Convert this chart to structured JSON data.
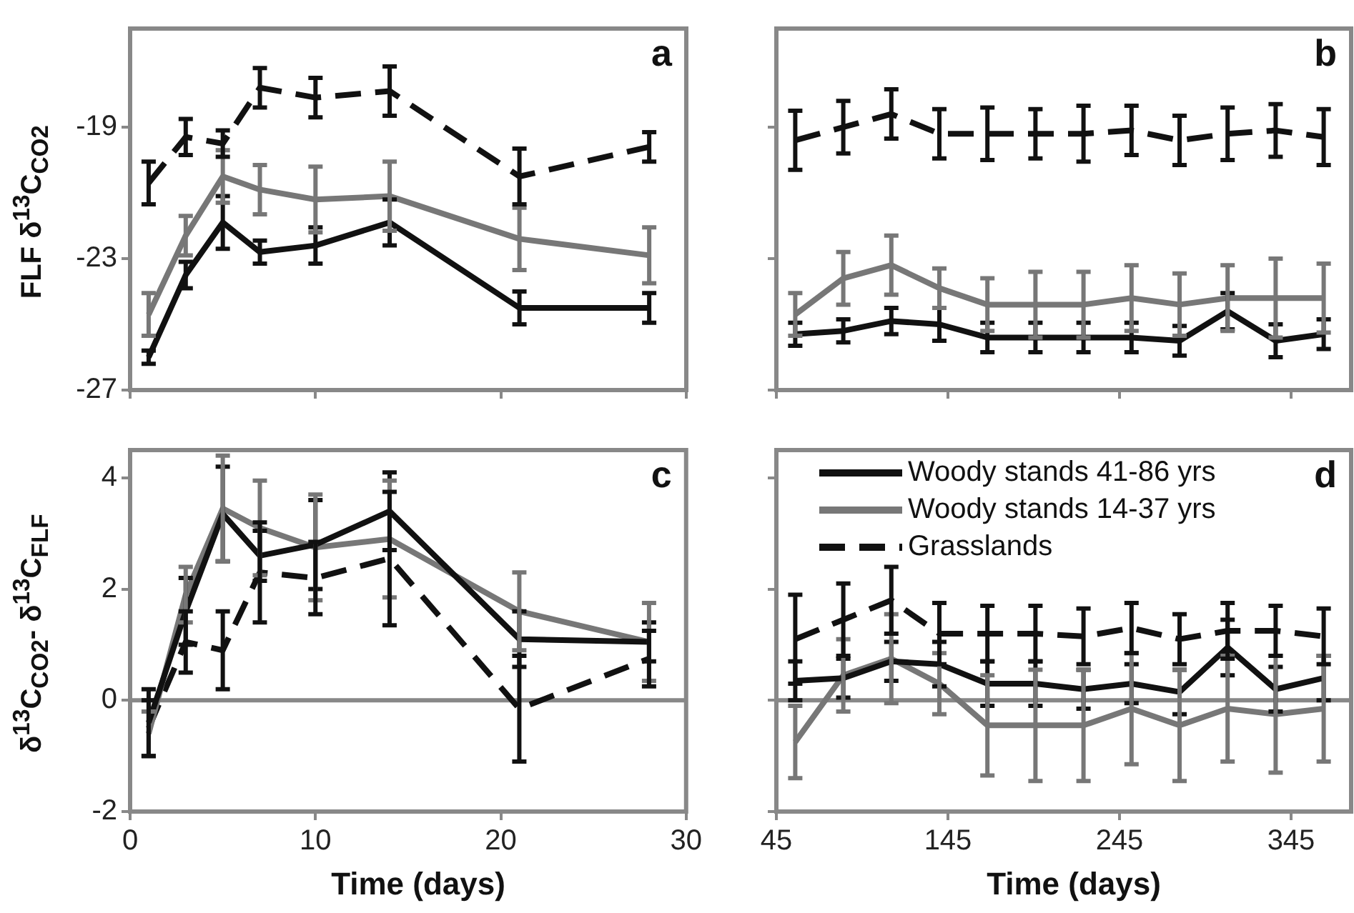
{
  "chart_data": [
    {
      "type": "line",
      "annotations": [
        "a"
      ],
      "ylabel": "FLF δ$^{13}$C$_{CO2}$",
      "x": [
        1,
        3,
        5,
        7,
        10,
        14,
        21,
        28
      ],
      "xlim": [
        0,
        30
      ],
      "xticks": [
        0,
        10,
        20,
        30
      ],
      "ylim": [
        -27,
        -16
      ],
      "yticks": [
        -27,
        -23,
        -19
      ],
      "tick_labels": "y",
      "series": [
        {
          "color": "#111111",
          "line_style": "solid",
          "values": [
            -26.0,
            -23.5,
            -21.9,
            -22.8,
            -22.6,
            -21.9,
            -24.5,
            -24.5
          ],
          "errors": [
            0.2,
            0.4,
            0.8,
            0.35,
            0.55,
            0.7,
            0.5,
            0.45
          ]
        },
        {
          "color": "#777777",
          "line_style": "solid",
          "values": [
            -24.7,
            -22.3,
            -20.5,
            -20.9,
            -21.2,
            -21.1,
            -22.4,
            -22.9
          ],
          "errors": [
            0.65,
            0.6,
            0.8,
            0.75,
            1.0,
            1.05,
            0.95,
            0.85
          ]
        },
        {
          "color": "#111111",
          "line_style": "dashed",
          "values": [
            -20.7,
            -19.3,
            -19.5,
            -17.8,
            -18.1,
            -17.9,
            -20.5,
            -19.6
          ],
          "errors": [
            0.65,
            0.55,
            0.4,
            0.6,
            0.6,
            0.75,
            0.85,
            0.45
          ]
        }
      ]
    },
    {
      "type": "line",
      "annotations": [
        "b"
      ],
      "x": [
        56,
        84,
        112,
        140,
        168,
        196,
        224,
        252,
        280,
        308,
        336,
        364
      ],
      "xlim": [
        45,
        380
      ],
      "xticks": [
        45,
        145,
        245,
        345
      ],
      "ylim": [
        -27,
        -16
      ],
      "yticks": [
        -27,
        -23,
        -19
      ],
      "tick_labels": false,
      "series": [
        {
          "color": "#111111",
          "line_style": "solid",
          "values": [
            -25.3,
            -25.2,
            -24.9,
            -25.0,
            -25.4,
            -25.4,
            -25.4,
            -25.4,
            -25.5,
            -24.6,
            -25.5,
            -25.3
          ],
          "errors": [
            0.35,
            0.35,
            0.4,
            0.5,
            0.45,
            0.45,
            0.45,
            0.45,
            0.45,
            0.55,
            0.5,
            0.45
          ]
        },
        {
          "color": "#777777",
          "line_style": "solid",
          "values": [
            -24.7,
            -23.6,
            -23.2,
            -23.9,
            -24.4,
            -24.4,
            -24.4,
            -24.2,
            -24.4,
            -24.2,
            -24.2,
            -24.2
          ],
          "errors": [
            0.65,
            0.8,
            0.9,
            0.6,
            0.8,
            1.0,
            1.0,
            1.0,
            0.95,
            1.0,
            1.2,
            1.05
          ]
        },
        {
          "color": "#111111",
          "line_style": "dashed",
          "values": [
            -19.4,
            -19.0,
            -18.6,
            -19.2,
            -19.2,
            -19.2,
            -19.2,
            -19.1,
            -19.4,
            -19.2,
            -19.1,
            -19.3
          ],
          "errors": [
            0.9,
            0.8,
            0.75,
            0.75,
            0.8,
            0.75,
            0.85,
            0.75,
            0.75,
            0.8,
            0.8,
            0.85
          ]
        }
      ]
    },
    {
      "type": "line",
      "annotations": [
        "c"
      ],
      "ylabel": "δ$^{13}$C$_{CO2}$- δ$^{13}$C$_{FLF}$",
      "xlabel": "Time (days)",
      "x": [
        1,
        3,
        5,
        7,
        10,
        14,
        21,
        28
      ],
      "xlim": [
        0,
        30
      ],
      "xticks": [
        0,
        10,
        20,
        30
      ],
      "ylim": [
        -2,
        4.5
      ],
      "yticks": [
        -2,
        0,
        2,
        4
      ],
      "ref_lines": [
        {
          "axis": "y",
          "value": 0,
          "color": "#888888"
        }
      ],
      "series": [
        {
          "color": "#111111",
          "line_style": "solid",
          "values": [
            -0.4,
            1.6,
            3.35,
            2.6,
            2.8,
            3.4,
            1.1,
            1.05
          ],
          "errors": [
            0.6,
            0.6,
            0.85,
            0.45,
            0.8,
            0.7,
            0.5,
            0.35
          ]
        },
        {
          "color": "#777777",
          "line_style": "solid",
          "values": [
            -0.6,
            1.9,
            3.45,
            3.1,
            2.75,
            2.9,
            1.6,
            1.05
          ],
          "errors": [
            0.4,
            0.5,
            0.95,
            0.85,
            0.95,
            1.05,
            0.7,
            0.7
          ]
        },
        {
          "color": "#111111",
          "line_style": "dashed",
          "values": [
            -0.5,
            1.05,
            0.9,
            2.3,
            2.2,
            2.55,
            -0.15,
            0.75
          ],
          "errors": [
            0.5,
            0.55,
            0.7,
            0.9,
            0.65,
            1.2,
            0.95,
            0.5
          ]
        }
      ]
    },
    {
      "type": "line",
      "annotations": [
        "d"
      ],
      "xlabel": "Time (days)",
      "x": [
        56,
        84,
        112,
        140,
        168,
        196,
        224,
        252,
        280,
        308,
        336,
        364
      ],
      "xlim": [
        45,
        380
      ],
      "xticks": [
        45,
        145,
        245,
        345
      ],
      "ylim": [
        -2,
        4.5
      ],
      "yticks": [
        -2,
        0,
        2,
        4
      ],
      "tick_labels": "x",
      "legend": "top left",
      "ref_lines": [
        {
          "axis": "y",
          "value": 0,
          "color": "#888888"
        }
      ],
      "series": [
        {
          "name": "Woody stands 41-86 yrs",
          "color": "#111111",
          "line_style": "solid",
          "values": [
            0.35,
            0.4,
            0.7,
            0.65,
            0.3,
            0.3,
            0.2,
            0.3,
            0.15,
            0.95,
            0.2,
            0.4
          ],
          "errors": [
            0.35,
            0.35,
            0.35,
            0.4,
            0.4,
            0.4,
            0.35,
            0.35,
            0.4,
            0.5,
            0.4,
            0.4
          ]
        },
        {
          "name": "Woody stands 14-37 yrs",
          "color": "#777777",
          "line_style": "solid",
          "values": [
            -0.75,
            0.45,
            0.75,
            0.3,
            -0.45,
            -0.45,
            -0.45,
            -0.15,
            -0.45,
            -0.15,
            -0.25,
            -0.15
          ],
          "errors": [
            0.65,
            0.65,
            0.8,
            0.55,
            0.9,
            1.0,
            1.0,
            1.0,
            1.0,
            0.95,
            1.05,
            0.95
          ]
        },
        {
          "name": "Grasslands",
          "color": "#111111",
          "line_style": "dashed",
          "values": [
            1.1,
            1.45,
            1.8,
            1.2,
            1.2,
            1.2,
            1.15,
            1.3,
            1.1,
            1.25,
            1.25,
            1.15
          ],
          "errors": [
            0.8,
            0.65,
            0.6,
            0.55,
            0.5,
            0.5,
            0.5,
            0.45,
            0.45,
            0.5,
            0.45,
            0.5
          ]
        }
      ]
    }
  ]
}
